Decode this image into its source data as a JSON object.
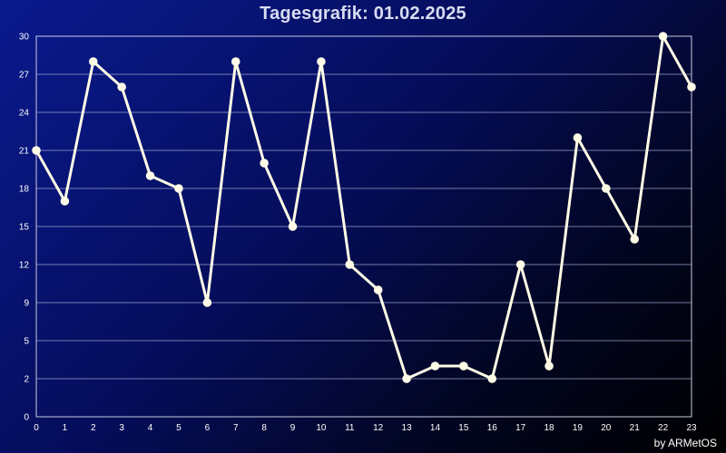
{
  "chart_data": {
    "type": "line",
    "title": "Tagesgrafik: 01.02.2025",
    "xlabel": "",
    "ylabel": "",
    "x": [
      0,
      1,
      2,
      3,
      4,
      5,
      6,
      7,
      8,
      9,
      10,
      11,
      12,
      13,
      14,
      15,
      16,
      17,
      18,
      19,
      20,
      21,
      22,
      23
    ],
    "series": [
      {
        "values": [
          21,
          17,
          28,
          26,
          19,
          18,
          9,
          28,
          20,
          15,
          28,
          12,
          10,
          3,
          4,
          4,
          3,
          12,
          4,
          22,
          18,
          14,
          30,
          26
        ]
      }
    ],
    "xlim": [
      0,
      23
    ],
    "ylim": [
      0,
      30
    ],
    "yticks": [
      0,
      2,
      5,
      9,
      12,
      15,
      18,
      21,
      24,
      27,
      30
    ],
    "xticks": [
      "0",
      "1",
      "2",
      "3",
      "4",
      "5",
      "6",
      "7",
      "8",
      "9",
      "10",
      "11",
      "12",
      "13",
      "14",
      "15",
      "16",
      "17",
      "18",
      "19",
      "20",
      "21",
      "22",
      "23"
    ],
    "grid": true,
    "legend": "none",
    "colors": {
      "line": "#fffbe6",
      "grid": "#9aa3c8",
      "frame": "#c8cce0"
    }
  },
  "footer": {
    "credit": "by ARMetOS"
  }
}
